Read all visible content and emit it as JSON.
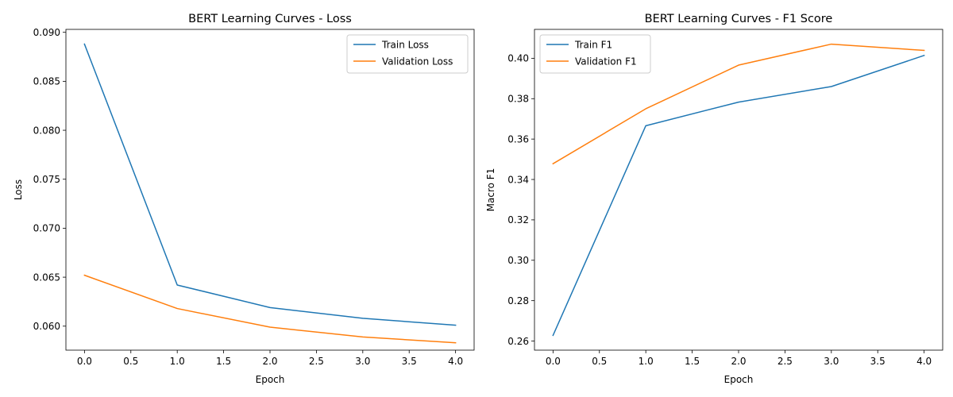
{
  "chart_data": [
    {
      "type": "line",
      "title": "BERT Learning Curves - Loss",
      "xlabel": "Epoch",
      "ylabel": "Loss",
      "xlim": [
        -0.2,
        4.2
      ],
      "ylim": [
        0.05755,
        0.0903
      ],
      "xticks": [
        0.0,
        0.5,
        1.0,
        1.5,
        2.0,
        2.5,
        3.0,
        3.5,
        4.0
      ],
      "xtick_labels": [
        "0.0",
        "0.5",
        "1.0",
        "1.5",
        "2.0",
        "2.5",
        "3.0",
        "3.5",
        "4.0"
      ],
      "yticks": [
        0.06,
        0.065,
        0.07,
        0.075,
        0.08,
        0.085,
        0.09
      ],
      "ytick_labels": [
        "0.060",
        "0.065",
        "0.070",
        "0.075",
        "0.080",
        "0.085",
        "0.090"
      ],
      "x": [
        0,
        1,
        2,
        3,
        4
      ],
      "legend_position": "top-right",
      "grid": false,
      "series": [
        {
          "name": "Train Loss",
          "color": "#1f77b4",
          "values": [
            0.0888,
            0.0642,
            0.0619,
            0.0608,
            0.0601
          ]
        },
        {
          "name": "Validation Loss",
          "color": "#ff7f0e",
          "values": [
            0.0652,
            0.0618,
            0.0599,
            0.0589,
            0.0583
          ]
        }
      ]
    },
    {
      "type": "line",
      "title": "BERT Learning Curves - F1 Score",
      "xlabel": "Epoch",
      "ylabel": "Macro F1",
      "xlim": [
        -0.2,
        4.2
      ],
      "ylim": [
        0.2555,
        0.4143
      ],
      "xticks": [
        0.0,
        0.5,
        1.0,
        1.5,
        2.0,
        2.5,
        3.0,
        3.5,
        4.0
      ],
      "xtick_labels": [
        "0.0",
        "0.5",
        "1.0",
        "1.5",
        "2.0",
        "2.5",
        "3.0",
        "3.5",
        "4.0"
      ],
      "yticks": [
        0.26,
        0.28,
        0.3,
        0.32,
        0.34,
        0.36,
        0.38,
        0.4
      ],
      "ytick_labels": [
        "0.26",
        "0.28",
        "0.30",
        "0.32",
        "0.34",
        "0.36",
        "0.38",
        "0.40"
      ],
      "x": [
        0,
        1,
        2,
        3,
        4
      ],
      "legend_position": "top-left",
      "grid": false,
      "series": [
        {
          "name": "Train F1",
          "color": "#1f77b4",
          "values": [
            0.2628,
            0.3666,
            0.3783,
            0.386,
            0.4014
          ]
        },
        {
          "name": "Validation F1",
          "color": "#ff7f0e",
          "values": [
            0.3478,
            0.375,
            0.3966,
            0.407,
            0.4039
          ]
        }
      ]
    }
  ]
}
